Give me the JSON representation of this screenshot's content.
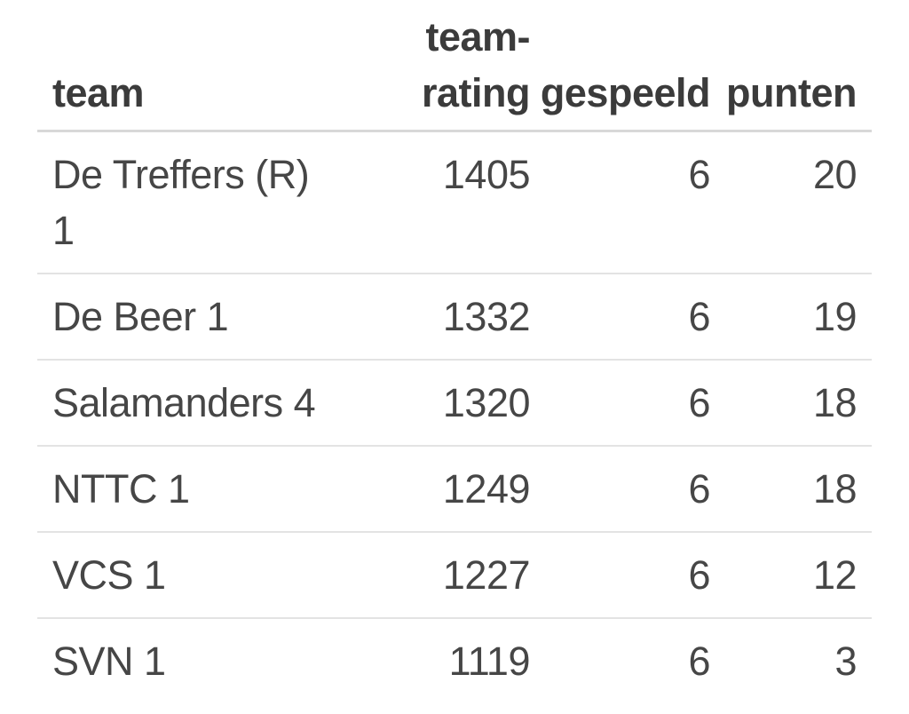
{
  "colors": {
    "background": "#ffffff",
    "header_text": "#3b3b3b",
    "body_text": "#464646",
    "header_border": "#d8d8d8",
    "row_border": "#e3e3e3"
  },
  "table": {
    "headers": {
      "team": "team",
      "rating": "team-rating",
      "gespeeld": "gespeeld",
      "punten": "punten"
    },
    "rows": [
      {
        "team": "De Treffers (R) 1",
        "rating": "1405",
        "gespeeld": "6",
        "punten": "20"
      },
      {
        "team": "De Beer 1",
        "rating": "1332",
        "gespeeld": "6",
        "punten": "19"
      },
      {
        "team": "Salamanders 4",
        "rating": "1320",
        "gespeeld": "6",
        "punten": "18"
      },
      {
        "team": "NTTC 1",
        "rating": "1249",
        "gespeeld": "6",
        "punten": "18"
      },
      {
        "team": "VCS 1",
        "rating": "1227",
        "gespeeld": "6",
        "punten": "12"
      },
      {
        "team": "SVN 1",
        "rating": "1119",
        "gespeeld": "6",
        "punten": "3"
      }
    ]
  },
  "chart_data": {
    "type": "table",
    "columns": [
      "team",
      "team-rating",
      "gespeeld",
      "punten"
    ],
    "rows": [
      [
        "De Treffers (R) 1",
        1405,
        6,
        20
      ],
      [
        "De Beer 1",
        1332,
        6,
        19
      ],
      [
        "Salamanders 4",
        1320,
        6,
        18
      ],
      [
        "NTTC 1",
        1249,
        6,
        18
      ],
      [
        "VCS 1",
        1227,
        6,
        12
      ],
      [
        "SVN 1",
        1119,
        6,
        3
      ]
    ]
  }
}
